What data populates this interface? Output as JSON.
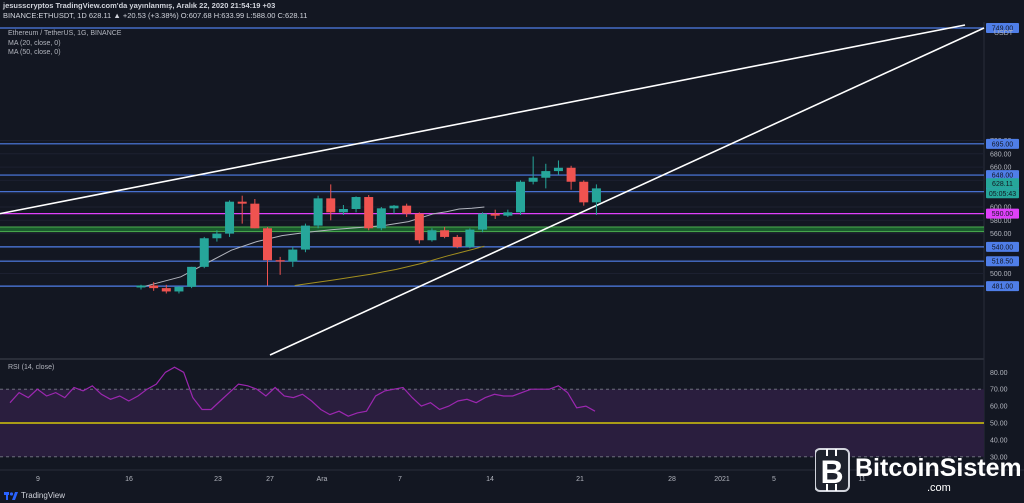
{
  "header": {
    "line1": "jesusscryptos TradingView.com'da yayınlanmış, Aralık 22, 2020 21:54:19 +03",
    "line2": "BINANCE:ETHUSDT, 1D 628.11 ▲ +20.53 (+3.38%) O:607.68 H:633.99 L:588.00 C:628.11"
  },
  "overlay": {
    "symbol": "Ethereum / TetherUS, 1G, BINANCE",
    "ma1": "MA (20, close, 0)",
    "ma2": "MA (50, close, 0)",
    "rsi": "RSI (14, close)"
  },
  "currency": "USDT",
  "colors": {
    "background": "#131722",
    "up": "#26a69a",
    "down": "#ef5350",
    "level_blue": "#4f7ee8",
    "magenta": "#e040fb",
    "green_zone": "#1e7a32",
    "ma20": "#b2b5be",
    "ma50": "#a38f1f",
    "rsi_line": "#9c27b0",
    "rsi_band": "#2a1e3e",
    "rsi_mid": "#f5e800"
  },
  "chart_data": [
    {
      "type": "candlestick",
      "title": "Ethereum / TetherUS, 1G, BINANCE",
      "x_ticks": [
        "9",
        "16",
        "23",
        "27",
        "Ara",
        "7",
        "14",
        "21",
        "28",
        "2021",
        "5",
        "11"
      ],
      "y_ticks": [
        500,
        520,
        540,
        560,
        580,
        600,
        620,
        640,
        660,
        680,
        700
      ],
      "ylim": [
        470,
        712
      ],
      "last_price": 628.11,
      "countdown": "05:05:43",
      "top_tag": "749.00",
      "levels": [
        {
          "value": 695.0,
          "color": "blue",
          "label": "695.00"
        },
        {
          "value": 648.0,
          "color": "blue",
          "label": "648.00"
        },
        {
          "value": 623.0,
          "color": "blue",
          "label": "623.00"
        },
        {
          "value": 590.0,
          "color": "magenta",
          "label": "590.00"
        },
        {
          "value": 540.0,
          "color": "blue",
          "label": "540.00"
        },
        {
          "value": 518.5,
          "color": "blue",
          "label": "518.50"
        },
        {
          "value": 481.0,
          "color": "blue",
          "label": "481.00"
        }
      ],
      "support_zone": [
        563,
        570
      ],
      "candles": [
        {
          "o": 479,
          "h": 483,
          "l": 476,
          "c": 482
        },
        {
          "o": 482,
          "h": 487,
          "l": 474,
          "c": 478
        },
        {
          "o": 478,
          "h": 483,
          "l": 470,
          "c": 473
        },
        {
          "o": 473,
          "h": 481,
          "l": 470,
          "c": 480
        },
        {
          "o": 480,
          "h": 510,
          "l": 478,
          "c": 510
        },
        {
          "o": 510,
          "h": 555,
          "l": 508,
          "c": 553
        },
        {
          "o": 553,
          "h": 565,
          "l": 548,
          "c": 560
        },
        {
          "o": 560,
          "h": 610,
          "l": 555,
          "c": 608
        },
        {
          "o": 608,
          "h": 617,
          "l": 575,
          "c": 605
        },
        {
          "o": 605,
          "h": 612,
          "l": 568,
          "c": 568
        },
        {
          "o": 568,
          "h": 570,
          "l": 482,
          "c": 520
        },
        {
          "o": 520,
          "h": 525,
          "l": 498,
          "c": 518
        },
        {
          "o": 518,
          "h": 540,
          "l": 510,
          "c": 536
        },
        {
          "o": 536,
          "h": 575,
          "l": 532,
          "c": 572
        },
        {
          "o": 572,
          "h": 617,
          "l": 568,
          "c": 613
        },
        {
          "o": 613,
          "h": 634,
          "l": 580,
          "c": 592
        },
        {
          "o": 592,
          "h": 603,
          "l": 588,
          "c": 597
        },
        {
          "o": 597,
          "h": 616,
          "l": 592,
          "c": 615
        },
        {
          "o": 615,
          "h": 618,
          "l": 565,
          "c": 568
        },
        {
          "o": 568,
          "h": 600,
          "l": 565,
          "c": 598
        },
        {
          "o": 598,
          "h": 603,
          "l": 590,
          "c": 602
        },
        {
          "o": 602,
          "h": 605,
          "l": 585,
          "c": 590
        },
        {
          "o": 590,
          "h": 592,
          "l": 545,
          "c": 550
        },
        {
          "o": 550,
          "h": 568,
          "l": 548,
          "c": 565
        },
        {
          "o": 565,
          "h": 570,
          "l": 553,
          "c": 555
        },
        {
          "o": 555,
          "h": 558,
          "l": 538,
          "c": 540
        },
        {
          "o": 540,
          "h": 568,
          "l": 538,
          "c": 566
        },
        {
          "o": 566,
          "h": 592,
          "l": 562,
          "c": 590
        },
        {
          "o": 590,
          "h": 596,
          "l": 582,
          "c": 587
        },
        {
          "o": 587,
          "h": 596,
          "l": 585,
          "c": 592
        },
        {
          "o": 592,
          "h": 640,
          "l": 588,
          "c": 638
        },
        {
          "o": 638,
          "h": 676,
          "l": 634,
          "c": 644
        },
        {
          "o": 644,
          "h": 665,
          "l": 628,
          "c": 654
        },
        {
          "o": 654,
          "h": 670,
          "l": 648,
          "c": 659
        },
        {
          "o": 659,
          "h": 662,
          "l": 626,
          "c": 638
        },
        {
          "o": 638,
          "h": 640,
          "l": 602,
          "c": 607
        },
        {
          "o": 607,
          "h": 634,
          "l": 588,
          "c": 628
        }
      ],
      "ma20": [
        {
          "i": 17,
          "v": 480
        },
        {
          "i": 20,
          "v": 495
        },
        {
          "i": 22,
          "v": 515
        },
        {
          "i": 24,
          "v": 535
        },
        {
          "i": 26,
          "v": 548
        },
        {
          "i": 28,
          "v": 557
        },
        {
          "i": 30,
          "v": 562
        },
        {
          "i": 32,
          "v": 566
        },
        {
          "i": 34,
          "v": 569
        },
        {
          "i": 36,
          "v": 572
        },
        {
          "i": 38,
          "v": 578
        },
        {
          "i": 40,
          "v": 590
        },
        {
          "i": 41,
          "v": 593
        },
        {
          "i": 42,
          "v": 597
        },
        {
          "i": 43,
          "v": 598
        },
        {
          "i": 44,
          "v": 600
        }
      ],
      "ma50": [
        {
          "i": 29,
          "v": 482
        },
        {
          "i": 32,
          "v": 490
        },
        {
          "i": 35,
          "v": 499
        },
        {
          "i": 37,
          "v": 506
        },
        {
          "i": 39,
          "v": 515
        },
        {
          "i": 41,
          "v": 526
        },
        {
          "i": 43,
          "v": 536
        },
        {
          "i": 44,
          "v": 541
        }
      ]
    },
    {
      "type": "line",
      "title": "RSI (14, close)",
      "y_ticks": [
        30,
        40,
        50,
        60,
        70,
        80
      ],
      "ylim": [
        27,
        85
      ],
      "guide_levels": [
        70,
        50,
        30
      ],
      "values": [
        62,
        68,
        65,
        70,
        66,
        68,
        65,
        71,
        69,
        72,
        67,
        64,
        66,
        63,
        66,
        70,
        73,
        80,
        83,
        80,
        65,
        58,
        58,
        63,
        68,
        73,
        72,
        70,
        66,
        71,
        66,
        65,
        67,
        63,
        58,
        55,
        57,
        54,
        56,
        57,
        66,
        69,
        70,
        71,
        65,
        60,
        62,
        58,
        60,
        63,
        64,
        62,
        65,
        67,
        66,
        66,
        68,
        70,
        70,
        70,
        72,
        68,
        59,
        60,
        57
      ]
    }
  ],
  "watermark": {
    "brand": "BitcoinSistemi",
    "suffix": ".com"
  },
  "footer": {
    "brand": "TradingView"
  }
}
